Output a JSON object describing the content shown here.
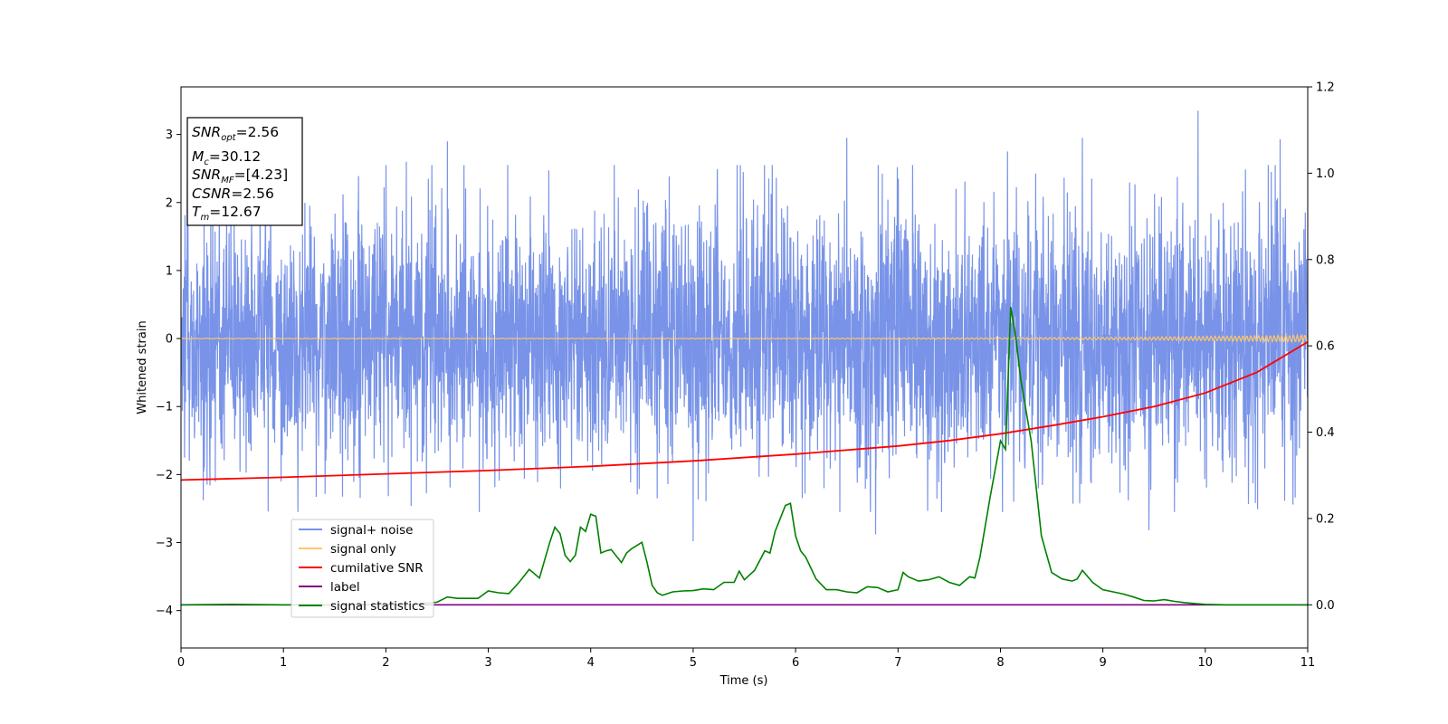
{
  "chart_data": {
    "type": "line",
    "xlabel": "Time (s)",
    "ylabel": "Whitened strain",
    "xlim": [
      0,
      11
    ],
    "ylim": [
      -4.55,
      3.7
    ],
    "y2lim": [
      -0.1,
      1.2
    ],
    "x_ticks": [
      "0",
      "1",
      "2",
      "3",
      "4",
      "5",
      "6",
      "7",
      "8",
      "9",
      "10",
      "11"
    ],
    "y_ticks": [
      "−4",
      "−3",
      "−2",
      "−1",
      "0",
      "1",
      "2",
      "3"
    ],
    "y2_ticks": [
      "0.0",
      "0.2",
      "0.4",
      "0.6",
      "0.8",
      "1.0",
      "1.2"
    ],
    "grid": false,
    "legend_position": "lower-left",
    "info_box": {
      "snr_opt": "=2.56",
      "mc": "=30.12",
      "snr_mf": "=[4.23]",
      "csnr": "=2.56",
      "tm": "=12.67"
    },
    "series": [
      {
        "name": "signal+ noise",
        "axis": "left",
        "color": "#7893e8",
        "kind": "noise",
        "band": [
          -1.7,
          1.7
        ],
        "peaks": [
          {
            "x": 9.93,
            "y": 3.35
          },
          {
            "x": 2.6,
            "y": 2.9
          },
          {
            "x": 10.73,
            "y": 2.93
          },
          {
            "x": 8.8,
            "y": 2.95
          },
          {
            "x": 6.5,
            "y": 2.95
          },
          {
            "x": 8.07,
            "y": 2.75
          },
          {
            "x": 2.2,
            "y": 2.6
          },
          {
            "x": 8.13,
            "y": -2.4
          },
          {
            "x": 5.0,
            "y": -2.98
          },
          {
            "x": 9.45,
            "y": -2.82
          },
          {
            "x": 6.78,
            "y": -2.88
          }
        ]
      },
      {
        "name": "signal only",
        "axis": "left",
        "color": "#ffc66b",
        "kind": "chirp",
        "values_desc": "near 0 with tiny oscillation growing to ±0.05 at x=11"
      },
      {
        "name": "cumilative SNR",
        "axis": "left",
        "color": "#ff0000",
        "kind": "line",
        "x": [
          0,
          1,
          2,
          3,
          4,
          5,
          6,
          7,
          7.5,
          8,
          8.5,
          9,
          9.5,
          10,
          10.5,
          11
        ],
        "values": [
          -2.08,
          -2.04,
          -1.99,
          -1.94,
          -1.88,
          -1.8,
          -1.7,
          -1.58,
          -1.5,
          -1.4,
          -1.28,
          -1.15,
          -1.0,
          -0.8,
          -0.5,
          -0.05
        ]
      },
      {
        "name": "label",
        "axis": "right",
        "color": "#800080",
        "kind": "line",
        "x": [
          0,
          11
        ],
        "values": [
          0.0,
          0.0
        ]
      },
      {
        "name": "signal statistics",
        "axis": "right",
        "color": "#008000",
        "kind": "line",
        "x": [
          0,
          0.5,
          1,
          1.5,
          2,
          2.3,
          2.5,
          2.6,
          2.7,
          2.9,
          3.0,
          3.1,
          3.2,
          3.3,
          3.4,
          3.5,
          3.6,
          3.65,
          3.7,
          3.75,
          3.8,
          3.85,
          3.9,
          3.95,
          4.0,
          4.05,
          4.1,
          4.15,
          4.2,
          4.3,
          4.35,
          4.4,
          4.5,
          4.55,
          4.6,
          4.65,
          4.7,
          4.8,
          4.9,
          5.0,
          5.1,
          5.2,
          5.3,
          5.4,
          5.45,
          5.5,
          5.6,
          5.7,
          5.75,
          5.8,
          5.9,
          5.95,
          6.0,
          6.05,
          6.1,
          6.2,
          6.3,
          6.4,
          6.5,
          6.6,
          6.7,
          6.8,
          6.9,
          7.0,
          7.05,
          7.1,
          7.2,
          7.3,
          7.4,
          7.5,
          7.6,
          7.7,
          7.75,
          7.8,
          7.9,
          8.0,
          8.05,
          8.1,
          8.15,
          8.2,
          8.3,
          8.4,
          8.5,
          8.6,
          8.7,
          8.75,
          8.8,
          8.9,
          9.0,
          9.1,
          9.2,
          9.3,
          9.4,
          9.5,
          9.6,
          9.7,
          9.8,
          9.9,
          10.0,
          10.2,
          10.5,
          11
        ],
        "values": [
          0.0,
          0.001,
          0.0,
          0.0,
          0.001,
          0.002,
          0.006,
          0.018,
          0.015,
          0.015,
          0.032,
          0.028,
          0.026,
          0.052,
          0.082,
          0.062,
          0.145,
          0.18,
          0.165,
          0.115,
          0.1,
          0.115,
          0.18,
          0.17,
          0.21,
          0.205,
          0.12,
          0.125,
          0.128,
          0.098,
          0.12,
          0.13,
          0.145,
          0.098,
          0.045,
          0.028,
          0.022,
          0.03,
          0.032,
          0.033,
          0.037,
          0.035,
          0.052,
          0.052,
          0.078,
          0.058,
          0.08,
          0.125,
          0.12,
          0.17,
          0.23,
          0.235,
          0.16,
          0.125,
          0.11,
          0.06,
          0.035,
          0.035,
          0.03,
          0.028,
          0.042,
          0.04,
          0.03,
          0.035,
          0.075,
          0.065,
          0.055,
          0.058,
          0.065,
          0.052,
          0.045,
          0.065,
          0.062,
          0.11,
          0.25,
          0.38,
          0.36,
          0.69,
          0.62,
          0.52,
          0.38,
          0.16,
          0.075,
          0.06,
          0.055,
          0.06,
          0.08,
          0.052,
          0.035,
          0.03,
          0.025,
          0.018,
          0.01,
          0.009,
          0.012,
          0.008,
          0.005,
          0.003,
          0.001,
          0.0,
          0.0,
          0.0
        ]
      }
    ]
  }
}
